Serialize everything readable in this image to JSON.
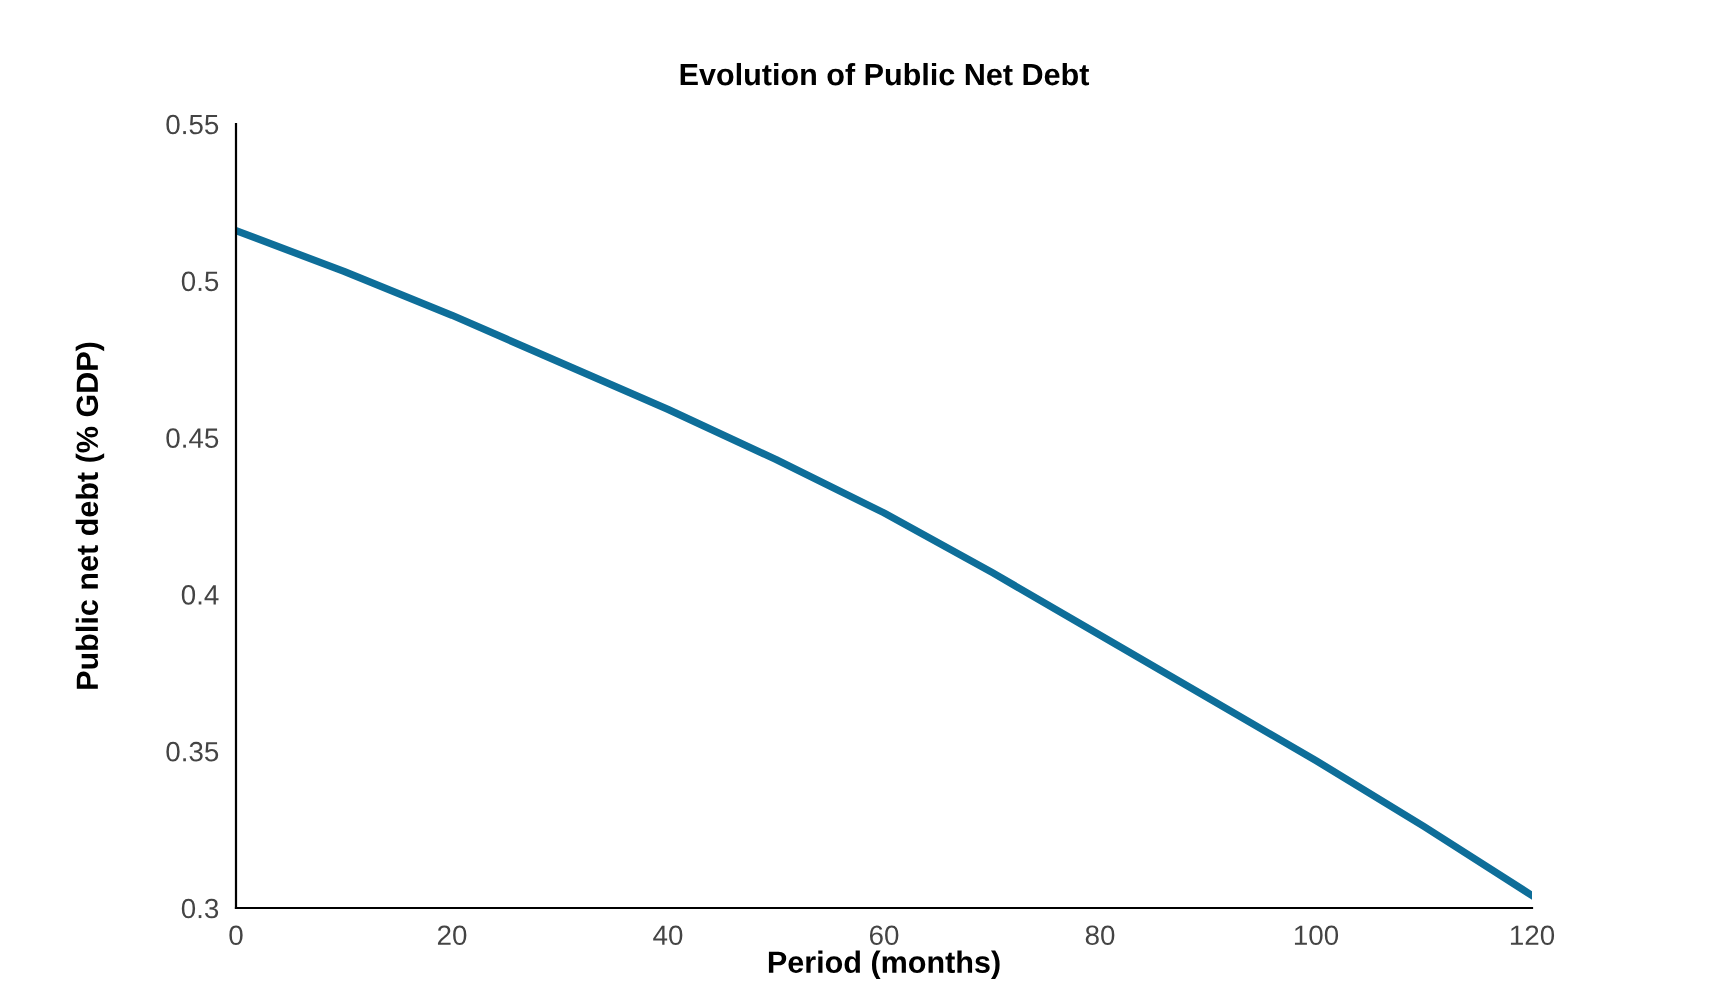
{
  "chart_data": {
    "type": "line",
    "title": "Evolution of Public Net Debt",
    "xlabel": "Period (months)",
    "ylabel": "Public net debt (% GDP)",
    "x": [
      0,
      10,
      20,
      30,
      40,
      50,
      60,
      70,
      80,
      90,
      100,
      110,
      120
    ],
    "series": [
      {
        "color": "#0e6e99",
        "values": [
          0.516,
          0.503,
          0.489,
          0.474,
          0.459,
          0.443,
          0.426,
          0.407,
          0.387,
          0.367,
          0.347,
          0.326,
          0.304
        ]
      }
    ],
    "xlim": [
      0,
      120
    ],
    "xticks": [
      0,
      20,
      40,
      60,
      80,
      100,
      120
    ],
    "ylim": [
      0.3,
      0.55
    ],
    "yticks": [
      0.3,
      0.35,
      0.4,
      0.45,
      0.5,
      0.55
    ],
    "grid": false,
    "legend": false
  }
}
